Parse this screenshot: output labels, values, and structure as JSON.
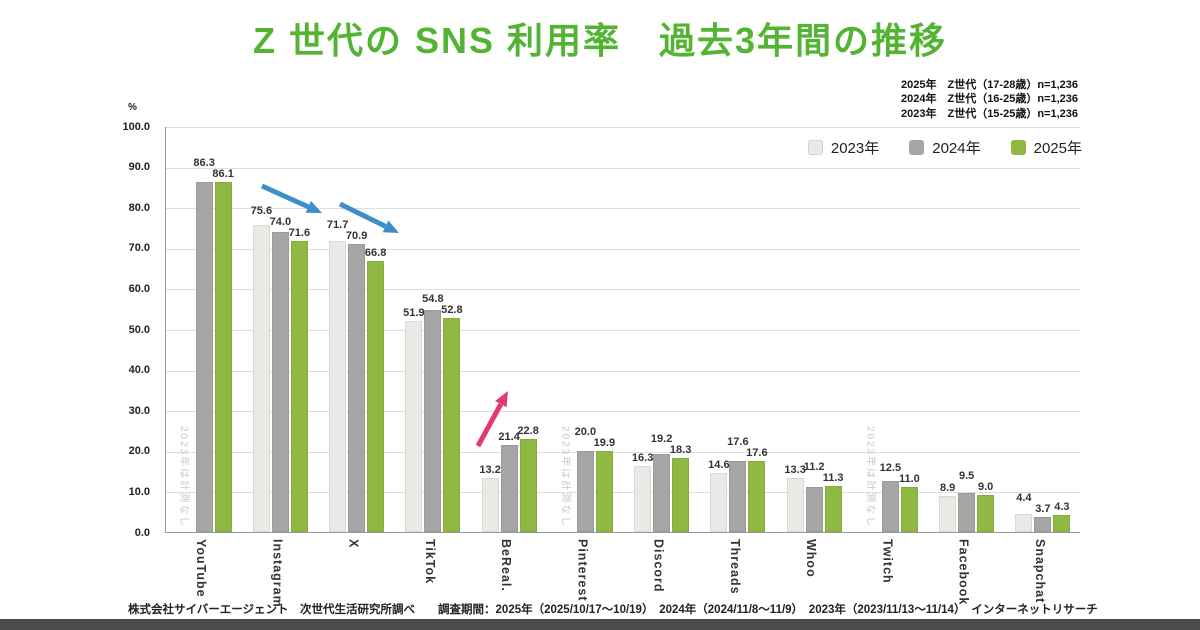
{
  "title": "Z 世代の SNS 利用率　過去3年間の推移",
  "notes": [
    "2025年　Z世代（17-28歳）n=1,236",
    "2024年　Z世代（16-25歳）n=1,236",
    "2023年　Z世代（15-25歳）n=1,236"
  ],
  "legend": [
    {
      "label": "2023年",
      "color": "#e9e9e6"
    },
    {
      "label": "2024年",
      "color": "#a6a6a6"
    },
    {
      "label": "2025年",
      "color": "#8fb943"
    }
  ],
  "axis": {
    "unit": "%"
  },
  "colors": {
    "title_green": "#53b332",
    "bar_2023": "#e9e9e6",
    "bar_2024": "#a6a6a6",
    "bar_2025": "#8fb943",
    "arrow_blue": "#3d8ec9",
    "arrow_pink": "#e23a6e"
  },
  "chart_data": {
    "type": "bar",
    "title": "Z 世代の SNS 利用率　過去3年間の推移",
    "xlabel": "",
    "ylabel": "%",
    "ylim": [
      0,
      100
    ],
    "ytick_step": 10,
    "grid": true,
    "legend_position": "top-right",
    "categories": [
      "YouTube",
      "Instagram",
      "X",
      "TikTok",
      "BeReal.",
      "Pinterest",
      "Discord",
      "Threads",
      "Whoo",
      "Twitch",
      "Facebook",
      "Snapchat"
    ],
    "series": [
      {
        "name": "2023年",
        "color": "#e9e9e6",
        "values": [
          null,
          75.6,
          71.7,
          51.9,
          13.2,
          null,
          16.3,
          14.6,
          13.3,
          null,
          8.9,
          4.4
        ]
      },
      {
        "name": "2024年",
        "color": "#a6a6a6",
        "values": [
          86.3,
          74.0,
          70.9,
          54.8,
          21.4,
          20.0,
          19.2,
          17.6,
          11.2,
          12.5,
          9.5,
          3.7
        ]
      },
      {
        "name": "2025年",
        "color": "#8fb943",
        "values": [
          86.1,
          71.6,
          66.8,
          52.8,
          22.8,
          19.9,
          18.3,
          17.6,
          11.3,
          11.0,
          9.0,
          4.3
        ]
      }
    ],
    "no_data_note": "2023年は計測なし",
    "no_data_categories": [
      "YouTube",
      "Pinterest",
      "Twitch"
    ],
    "annotations": [
      {
        "type": "arrow",
        "direction": "down",
        "color": "#3d8ec9",
        "target": "Instagram"
      },
      {
        "type": "arrow",
        "direction": "down",
        "color": "#3d8ec9",
        "target": "X"
      },
      {
        "type": "arrow",
        "direction": "up",
        "color": "#e23a6e",
        "target": "BeReal."
      }
    ]
  },
  "footer": "株式会社サイバーエージェント　次世代生活研究所調べ　　調査期間：2025年（2025/10/17～10/19）　2024年（2024/11/8～11/9）　2023年（2023/11/13～11/14）　インターネットリサーチ"
}
